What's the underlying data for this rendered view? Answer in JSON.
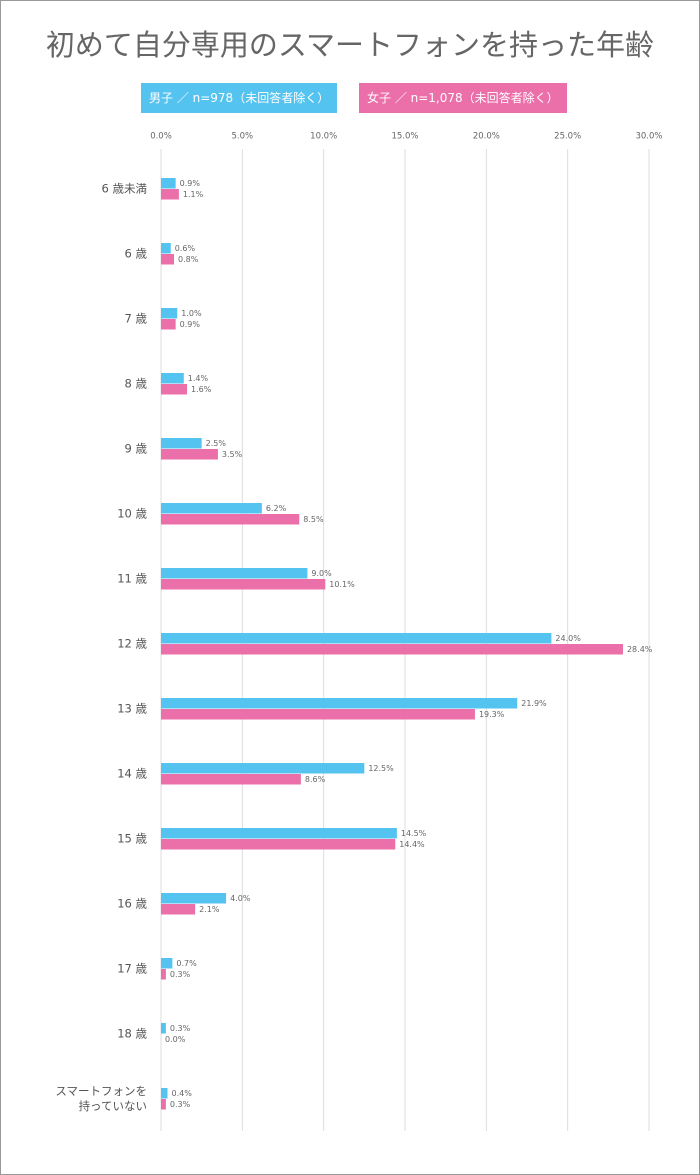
{
  "chart_data": {
    "type": "bar",
    "orientation": "horizontal",
    "title": "初めて自分専用のスマートフォンを持った年齢",
    "categories": [
      "6 歳未満",
      "6 歳",
      "7 歳",
      "8 歳",
      "9 歳",
      "10 歳",
      "11 歳",
      "12 歳",
      "13 歳",
      "14 歳",
      "15 歳",
      "16 歳",
      "17 歳",
      "18 歳",
      "スマートフォンを\n持っていない"
    ],
    "series": [
      {
        "name": "男子 ／ n=978（未回答者除く）",
        "color": "#55c3f0",
        "values": [
          0.9,
          0.6,
          1.0,
          1.4,
          2.5,
          6.2,
          9.0,
          24.0,
          21.9,
          12.5,
          14.5,
          4.0,
          0.7,
          0.3,
          0.4
        ],
        "value_labels": [
          "0.9%",
          "0.6%",
          "1.0%",
          "1.4%",
          "2.5%",
          "6.2%",
          "9.0%",
          "24.0%",
          "21.9%",
          "12.5%",
          "14.5%",
          "4.0%",
          "0.7%",
          "0.3%",
          "0.4%"
        ]
      },
      {
        "name": "女子 ／ n=1,078（未回答者除く）",
        "color": "#eb6fa9",
        "values": [
          1.1,
          0.8,
          0.9,
          1.6,
          3.5,
          8.5,
          10.1,
          28.4,
          19.3,
          8.6,
          14.4,
          2.1,
          0.3,
          0.0,
          0.3
        ],
        "value_labels": [
          "1.1%",
          "0.8%",
          "0.9%",
          "1.6%",
          "3.5%",
          "8.5%",
          "10.1%",
          "28.4%",
          "19.3%",
          "8.6%",
          "14.4%",
          "2.1%",
          "0.3%",
          "0.0%",
          "0.3%"
        ]
      }
    ],
    "xlim": [
      0,
      30
    ],
    "xticks": [
      {
        "value": 0,
        "label": "0.0%"
      },
      {
        "value": 5,
        "label": "5.0%"
      },
      {
        "value": 10,
        "label": "10.0%"
      },
      {
        "value": 15,
        "label": "15.0%"
      },
      {
        "value": 20,
        "label": "20.0%"
      },
      {
        "value": 25,
        "label": "25.0%"
      },
      {
        "value": 30,
        "label": "30.0%"
      }
    ],
    "grid": true
  }
}
